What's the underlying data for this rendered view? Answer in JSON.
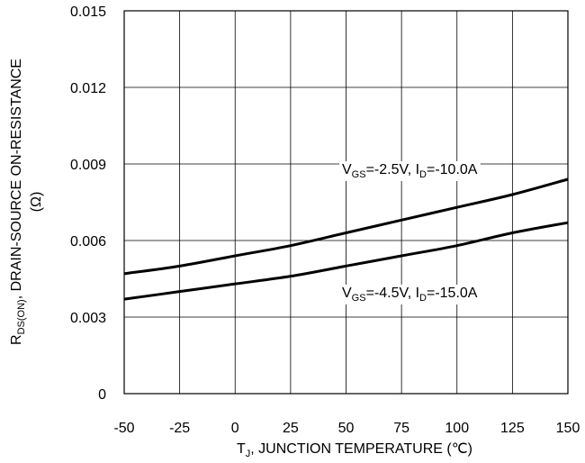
{
  "chart_data": {
    "type": "line",
    "xlabel": "T_J, JUNCTION TEMPERATURE (℃)",
    "ylabel_line1": "R_DS(ON), DRAIN-SOURCE ON-RESISTANCE",
    "ylabel_line2": "(Ω)",
    "xlim": [
      -50,
      150
    ],
    "ylim": [
      0,
      0.015
    ],
    "x_ticks": [
      -50,
      -25,
      0,
      25,
      50,
      75,
      100,
      125,
      150
    ],
    "y_ticks": [
      0,
      0.003,
      0.006,
      0.009,
      0.012,
      0.015
    ],
    "y_tick_labels": [
      "0",
      "0.003",
      "0.006",
      "0.009",
      "0.012",
      "0.015"
    ],
    "grid": true,
    "series": [
      {
        "name": "VGS=-2.5V, ID=-10.0A",
        "x": [
          -50,
          -25,
          0,
          25,
          50,
          75,
          100,
          125,
          150
        ],
        "y": [
          0.0047,
          0.005,
          0.0054,
          0.0058,
          0.0063,
          0.0068,
          0.0073,
          0.0078,
          0.0084
        ]
      },
      {
        "name": "VGS=-4.5V, ID=-15.0A",
        "x": [
          -50,
          -25,
          0,
          25,
          50,
          75,
          100,
          125,
          150
        ],
        "y": [
          0.0037,
          0.004,
          0.0043,
          0.0046,
          0.005,
          0.0054,
          0.0058,
          0.0063,
          0.0067
        ]
      }
    ],
    "annotations": [
      {
        "sub_v": "GS",
        "mid": "=-2.5V, I",
        "sub_i": "D",
        "tail": "=-10.0A"
      },
      {
        "sub_v": "GS",
        "mid": "=-4.5V, I",
        "sub_i": "D",
        "tail": "=-15.0A"
      }
    ]
  }
}
